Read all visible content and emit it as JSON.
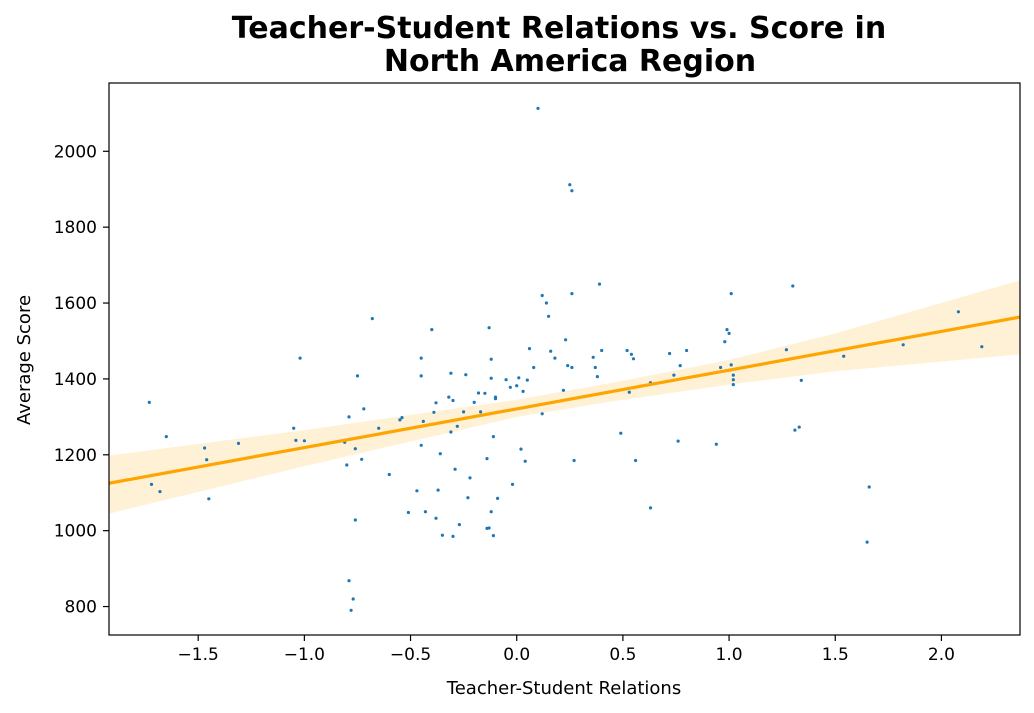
{
  "chart_data": {
    "type": "scatter",
    "title": [
      "Teacher-Student Relations vs. Score in",
      "North America Region"
    ],
    "xlabel": "Teacher-Student Relations",
    "ylabel": "Average Score",
    "xlim": [
      -1.92,
      2.37
    ],
    "ylim": [
      725,
      2180
    ],
    "xticks": [
      -1.5,
      -1.0,
      -0.5,
      0.0,
      0.5,
      1.0,
      1.5,
      2.0
    ],
    "xtick_labels": [
      "−1.5",
      "−1.0",
      "−0.5",
      "0.0",
      "0.5",
      "1.0",
      "1.5",
      "2.0"
    ],
    "yticks": [
      800,
      1000,
      1200,
      1400,
      1600,
      1800,
      2000
    ],
    "ytick_labels": [
      "800",
      "1000",
      "1200",
      "1400",
      "1600",
      "1800",
      "2000"
    ],
    "grid": false,
    "colors": {
      "points": "#1f77b4",
      "regression": "#ffa500",
      "band": "#ffa500"
    },
    "regression": {
      "x": [
        -1.92,
        2.37
      ],
      "y": [
        1125,
        1563
      ]
    },
    "confidence_band": {
      "x": [
        -1.92,
        -1.0,
        0.0,
        0.5,
        1.0,
        1.5,
        2.37
      ],
      "lower": [
        1045,
        1170,
        1300,
        1345,
        1385,
        1420,
        1465
      ],
      "upper": [
        1198,
        1265,
        1345,
        1395,
        1450,
        1520,
        1660
      ]
    },
    "points": {
      "x": [
        -1.73,
        -1.72,
        -1.68,
        -1.65,
        -1.47,
        -1.46,
        -1.45,
        -1.31,
        -1.05,
        -1.04,
        -1.02,
        -1.0,
        -0.81,
        -0.8,
        -0.79,
        -0.79,
        -0.78,
        -0.77,
        -0.76,
        -0.76,
        -0.75,
        -0.73,
        -0.72,
        -0.68,
        -0.65,
        -0.6,
        -0.55,
        -0.54,
        -0.51,
        -0.47,
        -0.45,
        -0.45,
        -0.45,
        -0.44,
        -0.43,
        -0.4,
        -0.39,
        -0.38,
        -0.38,
        -0.37,
        -0.36,
        -0.35,
        -0.32,
        -0.31,
        -0.31,
        -0.3,
        -0.3,
        -0.29,
        -0.28,
        -0.27,
        -0.25,
        -0.24,
        -0.23,
        -0.22,
        -0.2,
        -0.18,
        -0.17,
        -0.15,
        -0.14,
        -0.14,
        -0.13,
        -0.13,
        -0.12,
        -0.12,
        -0.12,
        -0.11,
        -0.11,
        -0.1,
        -0.1,
        -0.09,
        -0.05,
        -0.03,
        -0.02,
        0.0,
        0.01,
        0.02,
        0.03,
        0.04,
        0.05,
        0.06,
        0.08,
        0.1,
        0.12,
        0.12,
        0.14,
        0.15,
        0.16,
        0.18,
        0.22,
        0.23,
        0.24,
        0.25,
        0.26,
        0.26,
        0.26,
        0.27,
        0.36,
        0.37,
        0.38,
        0.39,
        0.4,
        0.49,
        0.52,
        0.53,
        0.54,
        0.55,
        0.56,
        0.63,
        0.63,
        0.72,
        0.74,
        0.76,
        0.77,
        0.8,
        0.94,
        0.96,
        0.98,
        0.99,
        1.0,
        1.01,
        1.01,
        1.02,
        1.02,
        1.02,
        1.27,
        1.3,
        1.31,
        1.33,
        1.34,
        1.54,
        1.65,
        1.66,
        1.82,
        2.08,
        2.19
      ],
      "y": [
        1338,
        1122,
        1103,
        1248,
        1218,
        1187,
        1084,
        1230,
        1270,
        1238,
        1455,
        1237,
        1233,
        1173,
        868,
        1300,
        790,
        820,
        1028,
        1216,
        1408,
        1188,
        1321,
        1559,
        1270,
        1148,
        1292,
        1298,
        1048,
        1105,
        1225,
        1455,
        1408,
        1288,
        1050,
        1530,
        1312,
        1337,
        1033,
        1107,
        1203,
        988,
        1352,
        1260,
        1415,
        985,
        1343,
        1162,
        1275,
        1016,
        1313,
        1411,
        1087,
        1139,
        1338,
        1363,
        1313,
        1362,
        1190,
        1006,
        1007,
        1535,
        1402,
        1452,
        1050,
        1248,
        987,
        1348,
        1352,
        1085,
        1398,
        1378,
        1122,
        1382,
        1403,
        1215,
        1367,
        1183,
        1397,
        1480,
        1430,
        2113,
        1308,
        1620,
        1600,
        1565,
        1473,
        1455,
        1370,
        1503,
        1435,
        1912,
        1896,
        1625,
        1430,
        1185,
        1457,
        1430,
        1406,
        1650,
        1475,
        1257,
        1475,
        1365,
        1465,
        1453,
        1185,
        1390,
        1060,
        1467,
        1410,
        1236,
        1435,
        1475,
        1228,
        1430,
        1498,
        1530,
        1520,
        1625,
        1437,
        1385,
        1410,
        1398,
        1477,
        1645,
        1265,
        1273,
        1396,
        1460,
        970,
        1115,
        1490,
        1577,
        1485
      ]
    }
  }
}
